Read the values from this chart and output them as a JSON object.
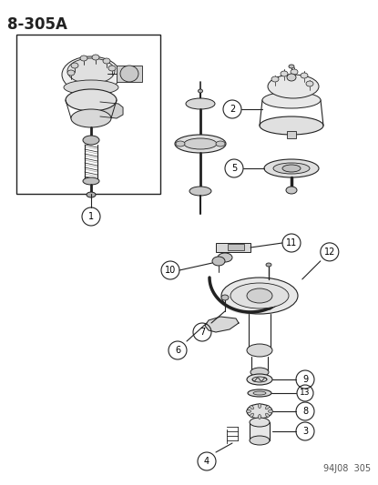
{
  "title": "8-305A",
  "footer": "94J08  305",
  "bg_color": "#ffffff",
  "title_fontsize": 12,
  "footer_fontsize": 7,
  "line_color": "#222222",
  "gray_fill": "#cccccc",
  "dark_gray": "#888888",
  "light_gray": "#e8e8e8"
}
